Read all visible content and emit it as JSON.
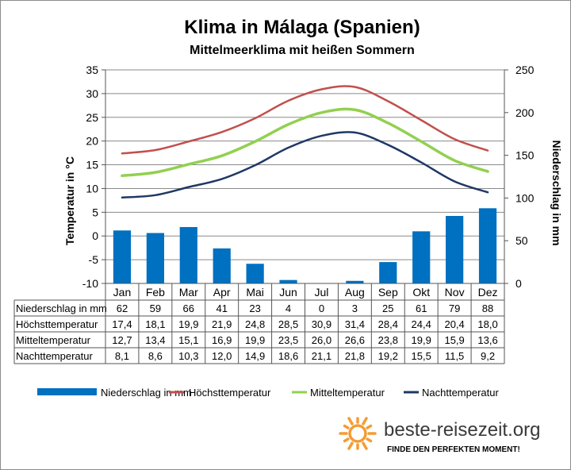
{
  "chart_data": {
    "type": "bar",
    "title": "Klima in Málaga (Spanien)",
    "subtitle": "Mittelmeerklima mit heißen Sommern",
    "categories": [
      "Jan",
      "Feb",
      "Mar",
      "Apr",
      "Mai",
      "Jun",
      "Jul",
      "Aug",
      "Sep",
      "Okt",
      "Nov",
      "Dez"
    ],
    "y_left": {
      "label": "Temperatur in °C",
      "min": -10,
      "max": 35,
      "step": 5
    },
    "y_right": {
      "label": "Niederschlag in mm",
      "min": 0,
      "max": 250,
      "step": 50
    },
    "grid": true,
    "legend_position": "bottom",
    "series": [
      {
        "name": "Niederschlag in mm",
        "table_label": "Niederschlag in mm",
        "kind": "bar",
        "axis": "right",
        "color": "#0070c0",
        "values": [
          62,
          59,
          66,
          41,
          23,
          4,
          0,
          3,
          25,
          61,
          79,
          88
        ]
      },
      {
        "name": "Höchsttemperatur",
        "table_label": "Höchsttemperatur",
        "kind": "line",
        "axis": "left",
        "color": "#c0504d",
        "values": [
          17.4,
          18.1,
          19.9,
          21.9,
          24.8,
          28.5,
          30.9,
          31.4,
          28.4,
          24.4,
          20.4,
          18.0
        ]
      },
      {
        "name": "Mitteltemperatur",
        "table_label": "Mitteltemperatur",
        "kind": "line",
        "axis": "left",
        "color": "#92d050",
        "values": [
          12.7,
          13.4,
          15.1,
          16.9,
          19.9,
          23.5,
          26.0,
          26.6,
          23.8,
          19.9,
          15.9,
          13.6
        ]
      },
      {
        "name": "Nachttemperatur",
        "table_label": "Nachttemperatur",
        "kind": "line",
        "axis": "left",
        "color": "#1f3864",
        "values": [
          8.1,
          8.6,
          10.3,
          12.0,
          14.9,
          18.6,
          21.1,
          21.8,
          19.2,
          15.5,
          11.5,
          9.2
        ]
      }
    ]
  },
  "brand": {
    "name": "beste-reisezeit.org",
    "slogan": "FINDE DEN PERFEKTEN MOMENT!",
    "sun_color": "#f39c34"
  }
}
